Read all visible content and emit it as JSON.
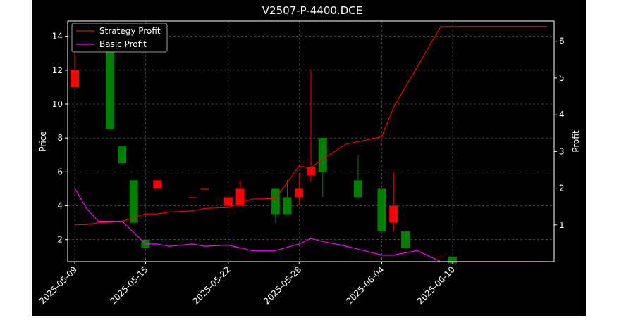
{
  "chart_data": {
    "type": "candlestick",
    "title": "V2507-P-4400.DCE",
    "xlabel": "",
    "ylabel": "Price",
    "ylabel_right": "Profit",
    "xlim": [
      "2025-05-09",
      "2025-06-18"
    ],
    "ylim": [
      0.7,
      14.9
    ],
    "ylim_right": [
      0.0,
      6.55
    ],
    "grid": true,
    "legend_position": "upper-left",
    "x_ticks": [
      "2025-05-09",
      "2025-05-15",
      "2025-05-22",
      "2025-05-28",
      "2025-06-04",
      "2025-06-10"
    ],
    "y_ticks": [
      2,
      4,
      6,
      8,
      10,
      12,
      14
    ],
    "y_ticks_right": [
      1,
      2,
      3,
      4,
      5,
      6
    ],
    "colors": {
      "up": "#ff0000",
      "down": "#008000",
      "strategy": "#ff0000",
      "basic": "#ff00ff",
      "grid": "#b0b0b0",
      "background": "#000000",
      "axes": "#ffffff"
    },
    "candles": [
      {
        "date": "2025-05-09",
        "open": 11,
        "high": 13,
        "low": 11,
        "close": 12
      },
      {
        "date": "2025-05-12",
        "open": 14,
        "high": 14,
        "low": 8.5,
        "close": 8.5
      },
      {
        "date": "2025-05-13",
        "open": 7.5,
        "high": 7.5,
        "low": 6.5,
        "close": 6.5
      },
      {
        "date": "2025-05-14",
        "open": 5.5,
        "high": 5.5,
        "low": 3,
        "close": 3
      },
      {
        "date": "2025-05-15",
        "open": 2,
        "high": 2,
        "low": 1.5,
        "close": 1.5
      },
      {
        "date": "2025-05-16",
        "open": 5,
        "high": 5.5,
        "low": 5,
        "close": 5.5
      },
      {
        "date": "2025-05-19",
        "open": 4.5,
        "high": 4.5,
        "low": 4.5,
        "close": 4.5
      },
      {
        "date": "2025-05-20",
        "open": 5,
        "high": 5,
        "low": 5,
        "close": 5
      },
      {
        "date": "2025-05-22",
        "open": 4,
        "high": 4.5,
        "low": 4,
        "close": 4.5
      },
      {
        "date": "2025-05-23",
        "open": 4,
        "high": 5.5,
        "low": 4,
        "close": 5
      },
      {
        "date": "2025-05-26",
        "open": 5,
        "high": 5,
        "low": 3,
        "close": 3.5
      },
      {
        "date": "2025-05-27",
        "open": 4.5,
        "high": 5.5,
        "low": 3.5,
        "close": 3.5
      },
      {
        "date": "2025-05-28",
        "open": 4.5,
        "high": 6,
        "low": 4,
        "close": 5
      },
      {
        "date": "2025-05-29",
        "open": 5.8,
        "high": 12,
        "low": 5.4,
        "close": 6.3
      },
      {
        "date": "2025-05-30",
        "open": 8,
        "high": 8,
        "low": 4.5,
        "close": 6
      },
      {
        "date": "2025-06-02",
        "open": 5.5,
        "high": 7,
        "low": 4.5,
        "close": 4.5
      },
      {
        "date": "2025-06-04",
        "open": 5,
        "high": 5,
        "low": 2.5,
        "close": 2.5
      },
      {
        "date": "2025-06-05",
        "open": 3,
        "high": 6,
        "low": 2.5,
        "close": 4
      },
      {
        "date": "2025-06-06",
        "open": 2.5,
        "high": 2.5,
        "low": 1.5,
        "close": 1.5
      },
      {
        "date": "2025-06-09",
        "open": 1,
        "high": 1,
        "low": 1,
        "close": 1
      },
      {
        "date": "2025-06-10",
        "open": 1,
        "high": 1,
        "low": 0.6,
        "close": 0.6
      }
    ],
    "series": [
      {
        "name": "Strategy Profit",
        "axis": "right",
        "points": [
          [
            "2025-05-09",
            1.0
          ],
          [
            "2025-05-10",
            1.01
          ],
          [
            "2025-05-11",
            1.06
          ],
          [
            "2025-05-13",
            1.1
          ],
          [
            "2025-05-15",
            1.3
          ],
          [
            "2025-05-16",
            1.3
          ],
          [
            "2025-05-17",
            1.35
          ],
          [
            "2025-05-19",
            1.38
          ],
          [
            "2025-05-20",
            1.45
          ],
          [
            "2025-05-22",
            1.47
          ],
          [
            "2025-05-24",
            1.7
          ],
          [
            "2025-05-26",
            1.72
          ],
          [
            "2025-05-28",
            2.6
          ],
          [
            "2025-05-29",
            2.55
          ],
          [
            "2025-05-30",
            2.8
          ],
          [
            "2025-06-01",
            3.2
          ],
          [
            "2025-06-04",
            3.4
          ],
          [
            "2025-06-05",
            4.2
          ],
          [
            "2025-06-07",
            5.3
          ],
          [
            "2025-06-09",
            6.4
          ],
          [
            "2025-06-18",
            6.4
          ]
        ]
      },
      {
        "name": "Basic Profit",
        "axis": "right",
        "points": [
          [
            "2025-05-09",
            2.0
          ],
          [
            "2025-05-10",
            1.45
          ],
          [
            "2025-05-11",
            1.1
          ],
          [
            "2025-05-13",
            1.1
          ],
          [
            "2025-05-15",
            0.48
          ],
          [
            "2025-05-16",
            0.48
          ],
          [
            "2025-05-17",
            0.42
          ],
          [
            "2025-05-19",
            0.48
          ],
          [
            "2025-05-20",
            0.42
          ],
          [
            "2025-05-22",
            0.45
          ],
          [
            "2025-05-24",
            0.3
          ],
          [
            "2025-05-26",
            0.3
          ],
          [
            "2025-05-28",
            0.48
          ],
          [
            "2025-05-29",
            0.63
          ],
          [
            "2025-05-30",
            0.55
          ],
          [
            "2025-06-01",
            0.42
          ],
          [
            "2025-06-04",
            0.18
          ],
          [
            "2025-06-05",
            0.18
          ],
          [
            "2025-06-07",
            0.3
          ],
          [
            "2025-06-09",
            0.0
          ],
          [
            "2025-06-18",
            0.0
          ]
        ]
      }
    ]
  }
}
